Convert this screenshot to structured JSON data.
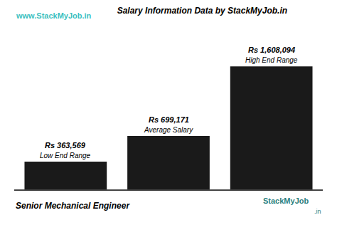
{
  "chart_data": {
    "type": "bar",
    "title": "Salary Information Data by StackMyJob.in",
    "categories": [
      "Low End Range",
      "Average Salary",
      "High End Range"
    ],
    "values": [
      363569,
      699171,
      1608094
    ],
    "value_labels": [
      "Rs 363,569",
      "Rs 699,171",
      "Rs 1,608,094"
    ],
    "data_labels": true,
    "color": "#1a1a1a",
    "ylim": [
      0,
      1900000
    ],
    "yticks": [],
    "tick_labels": false,
    "grid": false,
    "annotations": [
      "www.StackMyJob.in",
      "Senior Mechanical Engineer",
      "StackMyJob",
      ".in"
    ]
  }
}
